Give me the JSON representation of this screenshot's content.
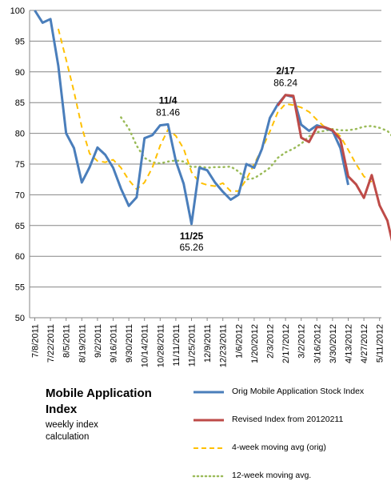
{
  "chart_data": {
    "type": "line",
    "title": "Mobile Application Index",
    "subtitle": "weekly index calculation",
    "ylim": [
      50,
      100
    ],
    "y_ticks": [
      50,
      55,
      60,
      65,
      70,
      75,
      80,
      85,
      90,
      95,
      100
    ],
    "grid": "horizontal",
    "legend_position": "bottom-right",
    "x_tick_labels": [
      "7/8/2011",
      "7/22/2011",
      "8/5/2011",
      "8/19/2011",
      "9/2/2011",
      "9/16/2011",
      "9/30/2011",
      "10/14/2011",
      "10/28/2011",
      "11/11/2011",
      "11/25/2011",
      "12/9/2011",
      "12/23/2011",
      "1/6/2012",
      "1/20/2012",
      "2/3/2012",
      "2/17/2012",
      "3/2/2012",
      "3/16/2012",
      "3/30/2012",
      "4/13/2012",
      "4/27/2012",
      "5/11/2012"
    ],
    "series": [
      {
        "name": "Orig Mobile Application Stock Index",
        "color": "#4a7ebb",
        "style": "solid",
        "points": [
          [
            0,
            100
          ],
          [
            1,
            98
          ],
          [
            2,
            98.6
          ],
          [
            3,
            91
          ],
          [
            4,
            80
          ],
          [
            5,
            77.6
          ],
          [
            6,
            72
          ],
          [
            7,
            74.5
          ],
          [
            8,
            77.7
          ],
          [
            9,
            76.5
          ],
          [
            10,
            74.4
          ],
          [
            11,
            71
          ],
          [
            12,
            68.2
          ],
          [
            13,
            69.6
          ],
          [
            14,
            79.2
          ],
          [
            15,
            79.7
          ],
          [
            16,
            81.3
          ],
          [
            17,
            81.46
          ],
          [
            18,
            75.5
          ],
          [
            19,
            71.8
          ],
          [
            20,
            65.26
          ],
          [
            21,
            74.4
          ],
          [
            22,
            74
          ],
          [
            23,
            72
          ],
          [
            24,
            70.5
          ],
          [
            25,
            69.2
          ],
          [
            26,
            70
          ],
          [
            27,
            75
          ],
          [
            28,
            74.4
          ],
          [
            29,
            77.5
          ],
          [
            30,
            82.5
          ],
          [
            31,
            84.7
          ],
          [
            32,
            86.24
          ],
          [
            33,
            85.9
          ],
          [
            34,
            81.4
          ],
          [
            35,
            80.4
          ],
          [
            36,
            81.3
          ],
          [
            37,
            80.9
          ],
          [
            38,
            80.4
          ],
          [
            39,
            77.6
          ],
          [
            40,
            71.6
          ]
        ]
      },
      {
        "name": "Revised Index from 20120211",
        "color": "#be4b48",
        "style": "solid",
        "points": [
          [
            31,
            84.5
          ],
          [
            32,
            86.24
          ],
          [
            33,
            86.1
          ],
          [
            34,
            79.3
          ],
          [
            35,
            78.6
          ],
          [
            36,
            81
          ],
          [
            37,
            81
          ],
          [
            38,
            80.5
          ],
          [
            39,
            79
          ],
          [
            40,
            73
          ],
          [
            41,
            71.7
          ],
          [
            42,
            69.5
          ],
          [
            43,
            73.2
          ],
          [
            44,
            68.3
          ],
          [
            45,
            65.8
          ],
          [
            46,
            60.3
          ]
        ]
      },
      {
        "name": "4-week moving avg (orig)",
        "color": "#ffc000",
        "style": "dashed",
        "points": [
          [
            3,
            97
          ],
          [
            4,
            92
          ],
          [
            5,
            86.8
          ],
          [
            6,
            81
          ],
          [
            7,
            76.7
          ],
          [
            8,
            75.5
          ],
          [
            9,
            75.3
          ],
          [
            10,
            75.7
          ],
          [
            11,
            74.4
          ],
          [
            12,
            72.4
          ],
          [
            13,
            70.9
          ],
          [
            14,
            72
          ],
          [
            15,
            74.4
          ],
          [
            16,
            78
          ],
          [
            17,
            80.6
          ],
          [
            18,
            79.6
          ],
          [
            19,
            77.5
          ],
          [
            20,
            73.7
          ],
          [
            21,
            72
          ],
          [
            22,
            71.6
          ],
          [
            23,
            71.4
          ],
          [
            24,
            71.9
          ],
          [
            25,
            70.6
          ],
          [
            26,
            70.6
          ],
          [
            27,
            72.5
          ],
          [
            28,
            75
          ],
          [
            29,
            77.5
          ],
          [
            30,
            80.3
          ],
          [
            31,
            83.4
          ],
          [
            32,
            84.8
          ],
          [
            33,
            84.6
          ],
          [
            34,
            84.2
          ],
          [
            35,
            83.5
          ],
          [
            36,
            82.2
          ],
          [
            37,
            81
          ],
          [
            38,
            80.6
          ],
          [
            39,
            79.5
          ],
          [
            40,
            77.3
          ],
          [
            41,
            75
          ],
          [
            42,
            73
          ],
          [
            43,
            72.1
          ]
        ]
      },
      {
        "name": "12-week moving avg.",
        "color": "#9bbb59",
        "style": "dotted",
        "points": [
          [
            11,
            82.6
          ],
          [
            12,
            80.8
          ],
          [
            13,
            78
          ],
          [
            14,
            76
          ],
          [
            15,
            75.3
          ],
          [
            16,
            75.1
          ],
          [
            17,
            75.4
          ],
          [
            18,
            75.6
          ],
          [
            19,
            75.4
          ],
          [
            20,
            74.5
          ],
          [
            21,
            74.6
          ],
          [
            22,
            74.4
          ],
          [
            23,
            74.5
          ],
          [
            24,
            74.5
          ],
          [
            25,
            74.6
          ],
          [
            26,
            73.8
          ],
          [
            27,
            72.5
          ],
          [
            28,
            72.7
          ],
          [
            29,
            73.5
          ],
          [
            30,
            74.4
          ],
          [
            31,
            76
          ],
          [
            32,
            76.9
          ],
          [
            33,
            77.5
          ],
          [
            34,
            78.3
          ],
          [
            35,
            79.5
          ],
          [
            36,
            80.2
          ],
          [
            37,
            80.4
          ],
          [
            38,
            80.7
          ],
          [
            39,
            80.5
          ],
          [
            40,
            80.5
          ],
          [
            41,
            80.7
          ],
          [
            42,
            81.1
          ],
          [
            43,
            81.2
          ],
          [
            44,
            80.9
          ],
          [
            45,
            80.4
          ],
          [
            46,
            79
          ]
        ]
      }
    ],
    "annotations": [
      {
        "date": "11/4",
        "value": "81.46",
        "x": 17,
        "y": 81.46,
        "placement": "above"
      },
      {
        "date": "11/25",
        "value": "65.26",
        "x": 20,
        "y": 65.26,
        "placement": "below"
      },
      {
        "date": "2/17",
        "value": "86.24",
        "x": 32,
        "y": 86.24,
        "placement": "above"
      }
    ]
  }
}
